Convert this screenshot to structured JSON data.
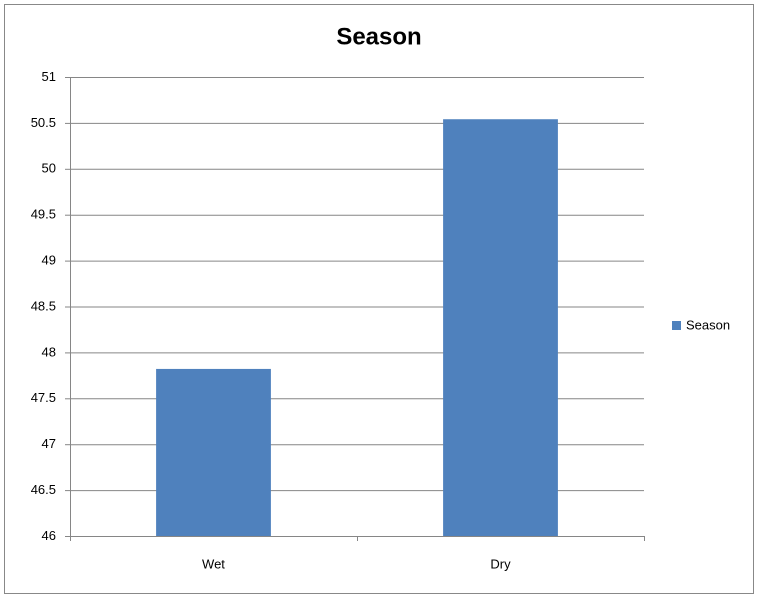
{
  "chart_data": {
    "type": "bar",
    "title": "Season",
    "categories": [
      "Wet",
      "Dry"
    ],
    "series": [
      {
        "name": "Season",
        "color": "#4f81bd",
        "values": [
          47.82,
          50.54
        ]
      }
    ],
    "ylim": [
      46,
      51
    ],
    "yticks": [
      46,
      46.5,
      47,
      47.5,
      48,
      48.5,
      49,
      49.5,
      50,
      50.5,
      51
    ],
    "grid": true,
    "legend": "right"
  }
}
